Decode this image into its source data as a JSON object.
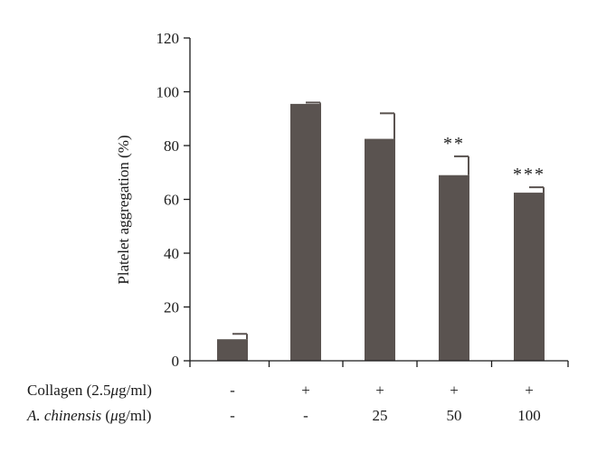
{
  "colors": {
    "bar": "#5a5350",
    "axis": "#1a1a1a"
  },
  "chart_data": {
    "type": "bar",
    "title": "",
    "xlabel": "",
    "ylabel": "Platelet aggregation (%)",
    "ylim": [
      0,
      120
    ],
    "yticks": [
      0,
      20,
      40,
      60,
      80,
      100,
      120
    ],
    "grid": false,
    "values": [
      8,
      95.5,
      82.5,
      69,
      62.5
    ],
    "errors": [
      2,
      0.5,
      9.5,
      7,
      2
    ],
    "significance": [
      "",
      "",
      "",
      "**",
      "***"
    ],
    "conditions": [
      {
        "label_prefix": "Collagen (2.5",
        "label_unit": "μ",
        "label_suffix": "g/ml)",
        "values": [
          "-",
          "+",
          "+",
          "+",
          "+"
        ]
      },
      {
        "label_prefix": "A. chinensis",
        "label_unit": "μ",
        "label_suffix": "g/ml)",
        "label_open": " (",
        "values": [
          "-",
          "-",
          "25",
          "50",
          "100"
        ]
      }
    ]
  }
}
